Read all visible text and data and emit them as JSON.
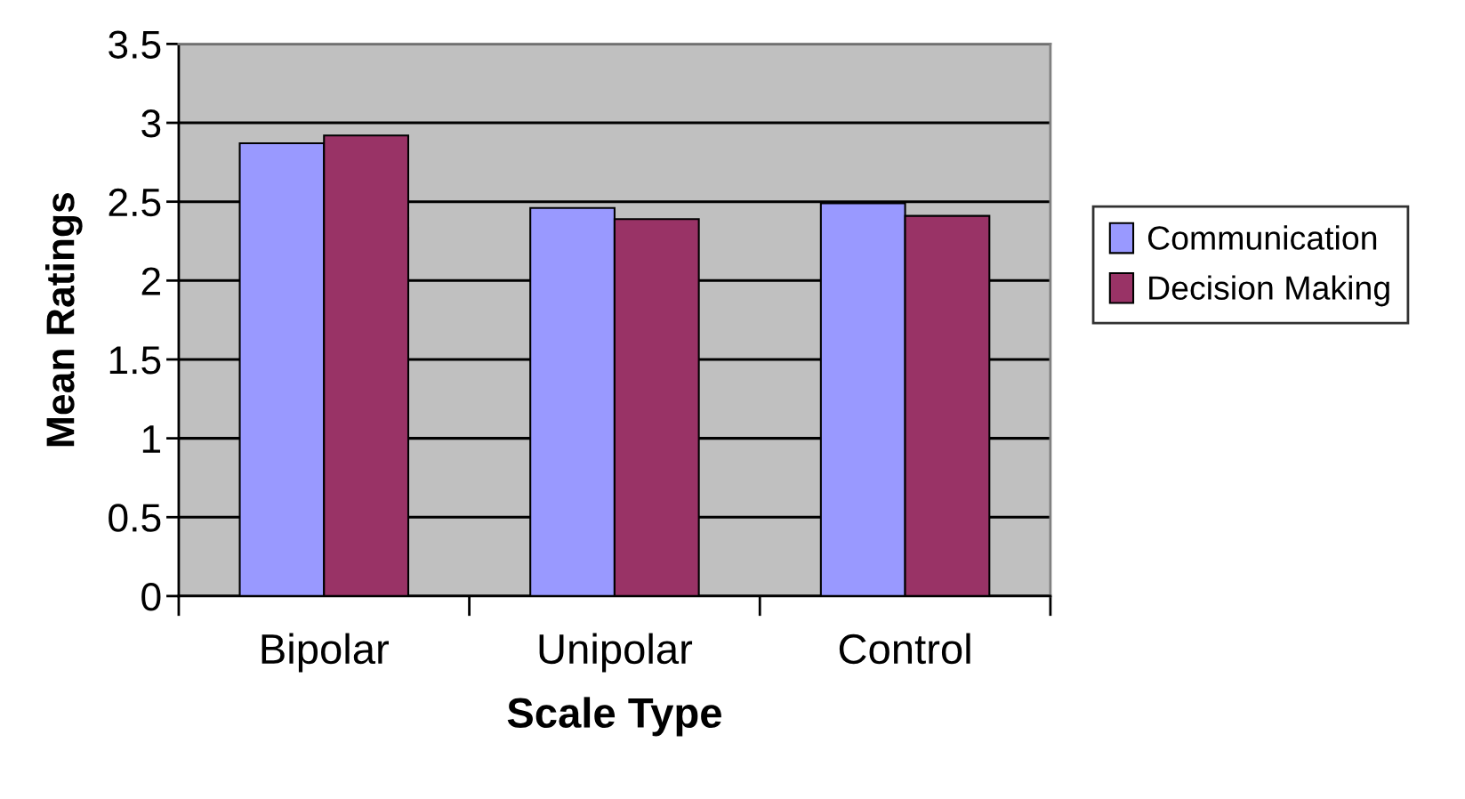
{
  "chart_data": {
    "type": "bar",
    "xlabel": "Scale Type",
    "ylabel": "Mean Ratings",
    "categories": [
      "Bipolar",
      "Unipolar",
      "Control"
    ],
    "series": [
      {
        "name": "Communication",
        "color": "#9999ff",
        "values": [
          2.87,
          2.46,
          2.49
        ]
      },
      {
        "name": "Decision Making",
        "color": "#993366",
        "values": [
          2.92,
          2.39,
          2.41
        ]
      }
    ],
    "ylim": [
      0,
      3.5
    ],
    "yticks": [
      0,
      0.5,
      1,
      1.5,
      2,
      2.5,
      3,
      3.5
    ],
    "grid": "y",
    "legend": "right"
  }
}
